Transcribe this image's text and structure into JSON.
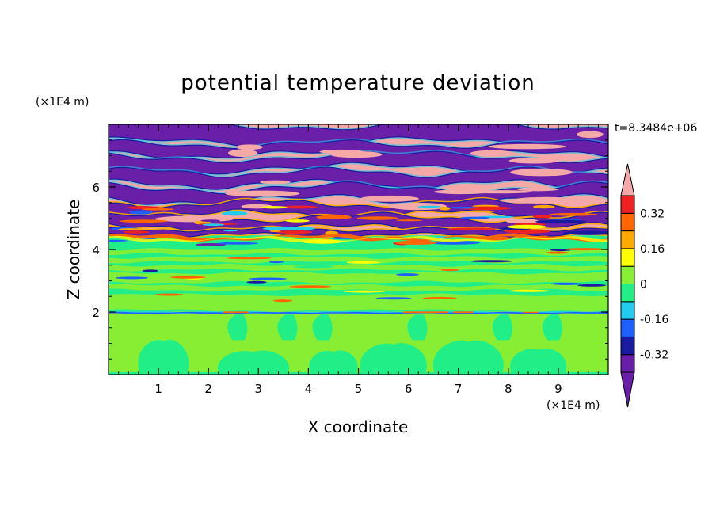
{
  "chart_data": {
    "type": "heatmap",
    "title": "potential temperature deviation",
    "xlabel": "X coordinate",
    "ylabel": "Z coordinate",
    "x_unit": "(×1E4 m)",
    "y_unit": "(×1E4 m)",
    "time_label": "t=8.3484e+06",
    "xlim": [
      0,
      10
    ],
    "ylim": [
      0,
      8
    ],
    "x_ticks": [
      "1",
      "2",
      "3",
      "4",
      "5",
      "6",
      "7",
      "8",
      "9"
    ],
    "x_tick_values": [
      1,
      2,
      3,
      4,
      5,
      6,
      7,
      8,
      9
    ],
    "y_ticks": [
      "2",
      "4",
      "6"
    ],
    "y_tick_values": [
      2,
      4,
      6
    ],
    "colorbar": {
      "labels": [
        "0.32",
        "0.16",
        "0",
        "-0.16",
        "-0.32"
      ],
      "label_values": [
        0.32,
        0.16,
        0,
        -0.16,
        -0.32
      ],
      "levels": [
        -0.4,
        -0.32,
        -0.24,
        -0.16,
        -0.08,
        0,
        0.08,
        0.16,
        0.24,
        0.32,
        0.4
      ],
      "colors": [
        "#6a1fa8",
        "#1a1aa0",
        "#1e60ff",
        "#22ccee",
        "#22ee88",
        "#88ee33",
        "#ffff00",
        "#ffaa00",
        "#ff6600",
        "#ee2222",
        "#f4a8a8"
      ],
      "extend": "both"
    },
    "regions": [
      {
        "z_range": [
          4.4,
          8
        ],
        "description_value": "alternating bands ±0.4",
        "colors": [
          "#f4a8a8",
          "#6a1fa8"
        ]
      },
      {
        "z_range": [
          2.0,
          4.4
        ],
        "description_value": "near zero",
        "colors": [
          "#22ee88",
          "#88ee33"
        ]
      },
      {
        "z_range": [
          0,
          2.0
        ],
        "description_value": "near zero with convective plumes",
        "colors": [
          "#88ee33",
          "#22ee88"
        ]
      }
    ]
  }
}
